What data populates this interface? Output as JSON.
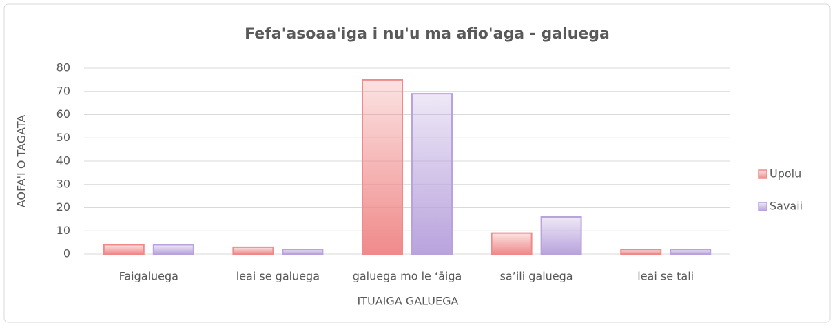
{
  "chart_data": {
    "type": "bar",
    "title": "Fefa'asoaa'iga i nu'u ma afio'aga - galuega",
    "x_label": "ITUAIGA GALUEGA",
    "y_label": "AOFA'I O TAGATA",
    "categories": [
      "Faigaluega",
      "leai se galuega",
      "galuega mo le ‘āiga",
      "sa’ili galuega",
      "leai se tali"
    ],
    "series": [
      {
        "name": "Upolu",
        "color": "#f08a8a",
        "values": [
          4,
          3,
          75,
          9,
          2
        ]
      },
      {
        "name": "Savaii",
        "color": "#b9a3dd",
        "values": [
          4,
          2,
          69,
          16,
          2
        ]
      }
    ],
    "ylim": [
      0,
      80
    ],
    "yticks": [
      0,
      10,
      20,
      30,
      40,
      50,
      60,
      70,
      80
    ],
    "grid": true,
    "legend": "right"
  }
}
